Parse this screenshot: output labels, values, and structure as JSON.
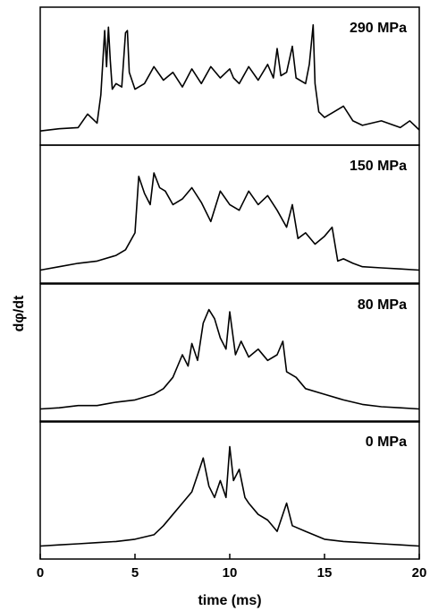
{
  "chart_data": {
    "type": "line",
    "title": "",
    "xlabel": "time (ms)",
    "ylabel": "dφ/dt",
    "xlim": [
      0,
      20
    ],
    "x_ticks": [
      "0",
      "5",
      "10",
      "15",
      "20"
    ],
    "grid": false,
    "legend": "none",
    "y_axis_ticks": "none",
    "panels": [
      {
        "label": "290 MPa",
        "name": "290 MPa",
        "x": [
          0,
          1,
          2,
          2.5,
          3,
          3.2,
          3.4,
          3.5,
          3.6,
          3.7,
          3.8,
          4,
          4.3,
          4.5,
          4.6,
          4.7,
          5,
          5.5,
          6,
          6.5,
          7,
          7.5,
          8,
          8.5,
          9,
          9.5,
          10,
          10.2,
          10.5,
          11,
          11.5,
          12,
          12.3,
          12.5,
          12.7,
          13,
          13.3,
          13.5,
          14,
          14.2,
          14.4,
          14.5,
          14.7,
          15,
          15.5,
          16,
          16.5,
          17,
          18,
          19,
          19.5,
          20
        ],
        "y": [
          0.03,
          0.05,
          0.06,
          0.18,
          0.1,
          0.35,
          0.92,
          0.6,
          0.95,
          0.65,
          0.4,
          0.45,
          0.42,
          0.9,
          0.92,
          0.55,
          0.4,
          0.45,
          0.6,
          0.48,
          0.55,
          0.42,
          0.58,
          0.45,
          0.6,
          0.5,
          0.58,
          0.5,
          0.45,
          0.6,
          0.48,
          0.62,
          0.5,
          0.76,
          0.52,
          0.55,
          0.78,
          0.5,
          0.45,
          0.62,
          0.97,
          0.45,
          0.2,
          0.15,
          0.2,
          0.25,
          0.12,
          0.08,
          0.12,
          0.06,
          0.12,
          0.04
        ]
      },
      {
        "label": "150 MPa",
        "name": "150 MPa",
        "x": [
          0,
          1,
          2,
          3,
          4,
          4.5,
          5,
          5.2,
          5.5,
          5.8,
          6,
          6.3,
          6.6,
          7,
          7.5,
          8,
          8.5,
          9,
          9.5,
          10,
          10.5,
          11,
          11.5,
          12,
          12.5,
          13,
          13.3,
          13.6,
          14,
          14.5,
          15,
          15.4,
          15.7,
          16,
          16.5,
          17,
          18,
          19,
          20
        ],
        "y": [
          0.02,
          0.05,
          0.08,
          0.1,
          0.15,
          0.2,
          0.35,
          0.85,
          0.7,
          0.6,
          0.88,
          0.75,
          0.72,
          0.6,
          0.65,
          0.75,
          0.62,
          0.45,
          0.72,
          0.6,
          0.55,
          0.72,
          0.6,
          0.68,
          0.55,
          0.4,
          0.6,
          0.3,
          0.35,
          0.25,
          0.32,
          0.4,
          0.1,
          0.12,
          0.08,
          0.05,
          0.04,
          0.03,
          0.02
        ]
      },
      {
        "label": "80 MPa",
        "name": "80 MPa",
        "x": [
          0,
          1,
          2,
          3,
          4,
          5,
          6,
          6.5,
          7,
          7.5,
          7.8,
          8,
          8.3,
          8.6,
          8.9,
          9.2,
          9.5,
          9.8,
          10,
          10.3,
          10.6,
          11,
          11.5,
          12,
          12.5,
          12.8,
          13,
          13.5,
          14,
          15,
          16,
          17,
          18,
          19,
          20
        ],
        "y": [
          0.02,
          0.03,
          0.05,
          0.05,
          0.08,
          0.1,
          0.15,
          0.2,
          0.3,
          0.5,
          0.4,
          0.6,
          0.45,
          0.78,
          0.9,
          0.82,
          0.65,
          0.55,
          0.88,
          0.5,
          0.62,
          0.48,
          0.55,
          0.45,
          0.5,
          0.62,
          0.35,
          0.3,
          0.2,
          0.15,
          0.1,
          0.06,
          0.04,
          0.03,
          0.02
        ]
      },
      {
        "label": "0 MPa",
        "name": "0 MPa",
        "x": [
          0,
          1,
          2,
          3,
          4,
          5,
          6,
          6.5,
          7,
          7.5,
          8,
          8.3,
          8.6,
          8.9,
          9.2,
          9.5,
          9.8,
          10,
          10.2,
          10.5,
          10.8,
          11,
          11.5,
          12,
          12.5,
          13,
          13.3,
          14,
          15,
          16,
          17,
          18,
          19,
          20
        ],
        "y": [
          0.02,
          0.03,
          0.04,
          0.05,
          0.06,
          0.08,
          0.12,
          0.2,
          0.3,
          0.4,
          0.5,
          0.65,
          0.8,
          0.55,
          0.45,
          0.6,
          0.45,
          0.9,
          0.6,
          0.7,
          0.45,
          0.4,
          0.3,
          0.25,
          0.15,
          0.4,
          0.2,
          0.15,
          0.08,
          0.06,
          0.05,
          0.04,
          0.03,
          0.02
        ]
      }
    ]
  }
}
